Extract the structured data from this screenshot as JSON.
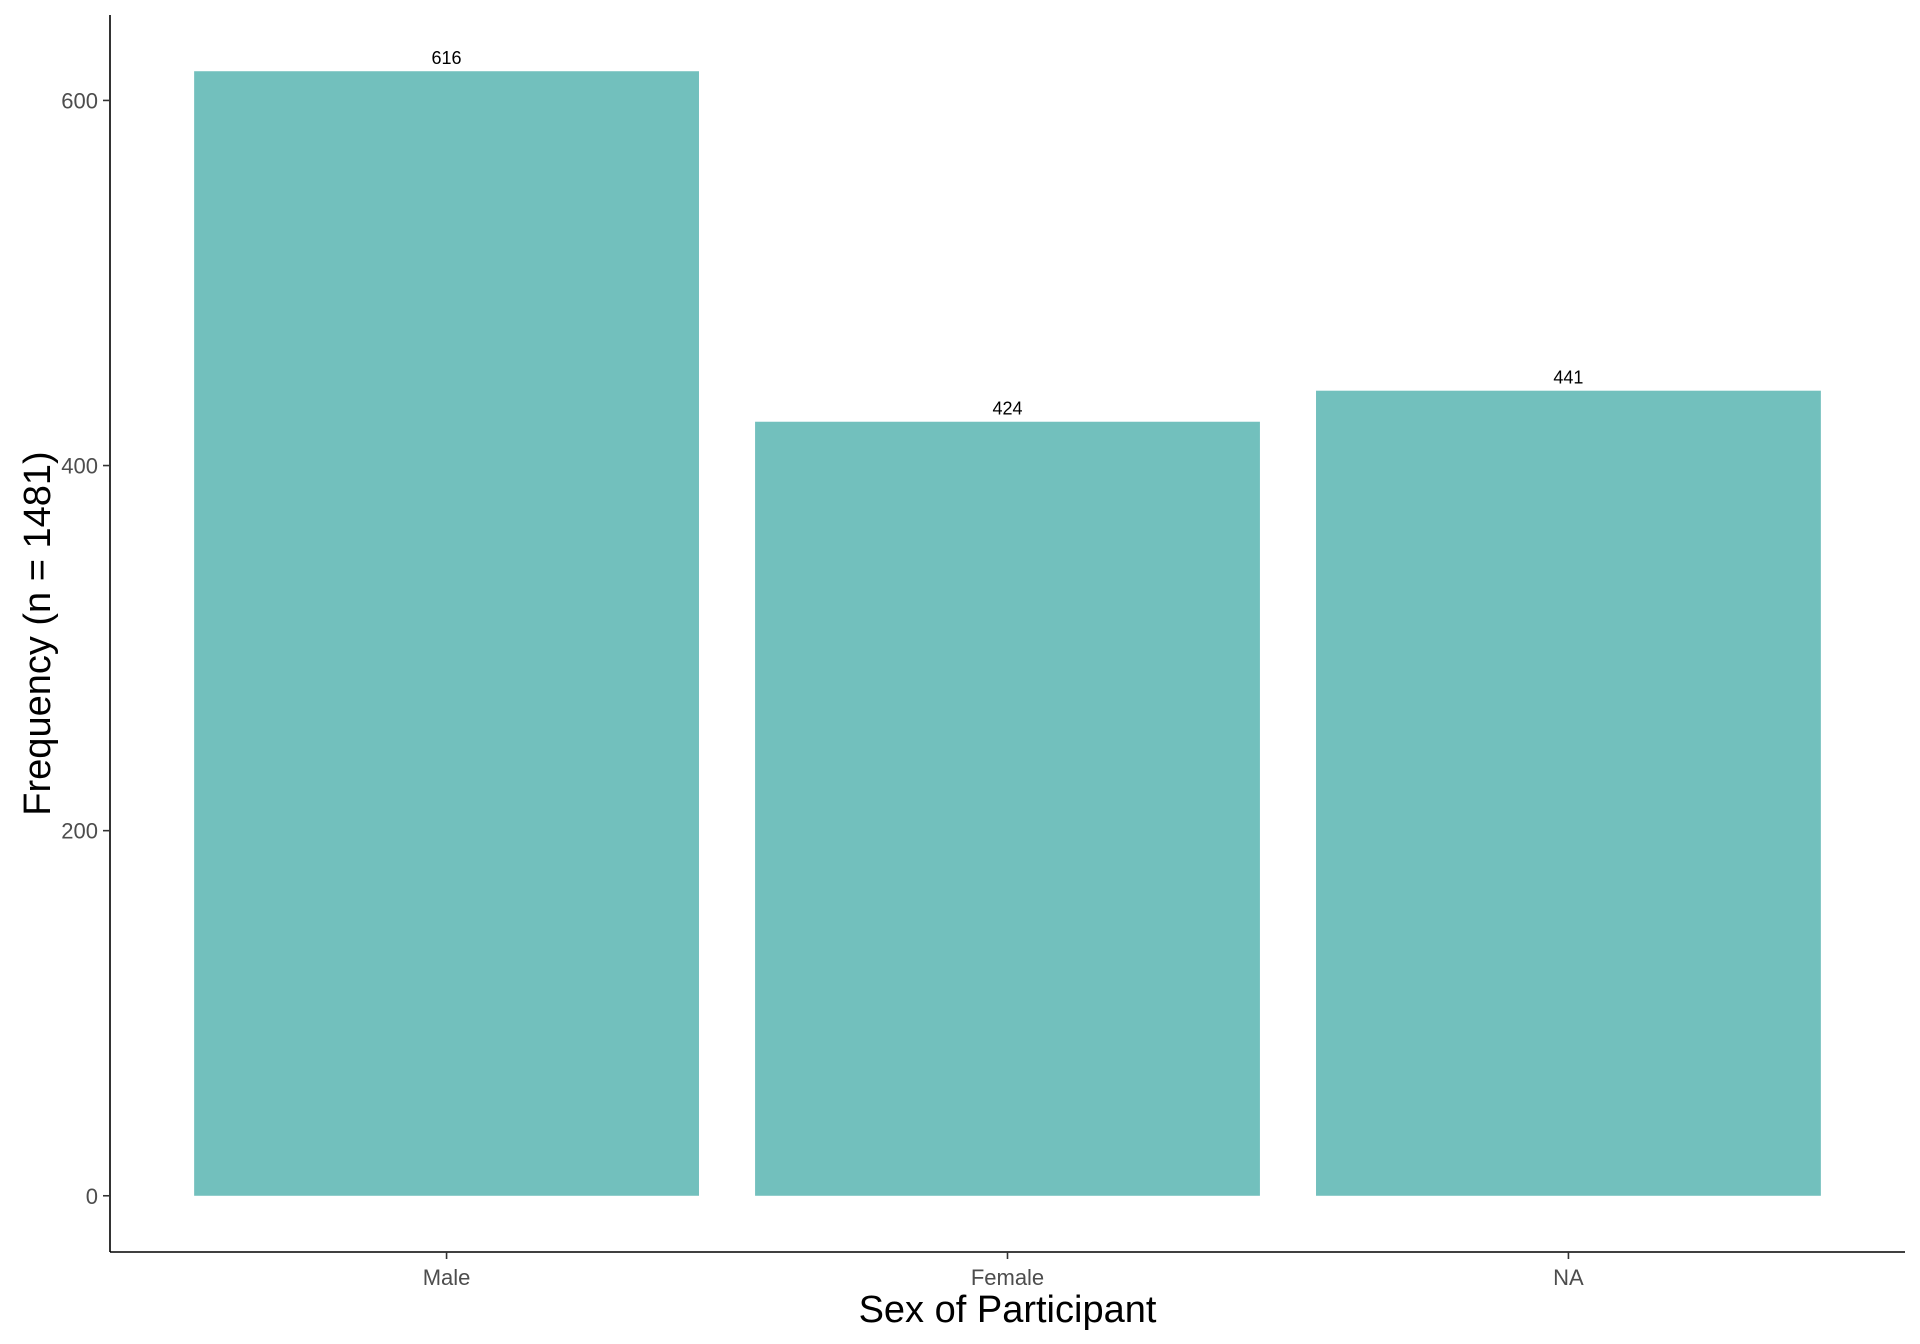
{
  "chart_data": {
    "type": "bar",
    "categories": [
      "Male",
      "Female",
      "NA"
    ],
    "values": [
      616,
      424,
      441
    ],
    "data_labels": [
      "616",
      "424",
      "441"
    ],
    "title": "",
    "xlabel": "Sex of Participant",
    "ylabel": "Frequency (n = 1481)",
    "ylim": [
      -30.8,
      646.8
    ],
    "yticks": [
      0,
      200,
      400,
      600
    ],
    "ytick_labels": [
      "0",
      "200",
      "400",
      "600"
    ],
    "grid": false,
    "legend": "none",
    "bar_color": "#72c0bd"
  }
}
